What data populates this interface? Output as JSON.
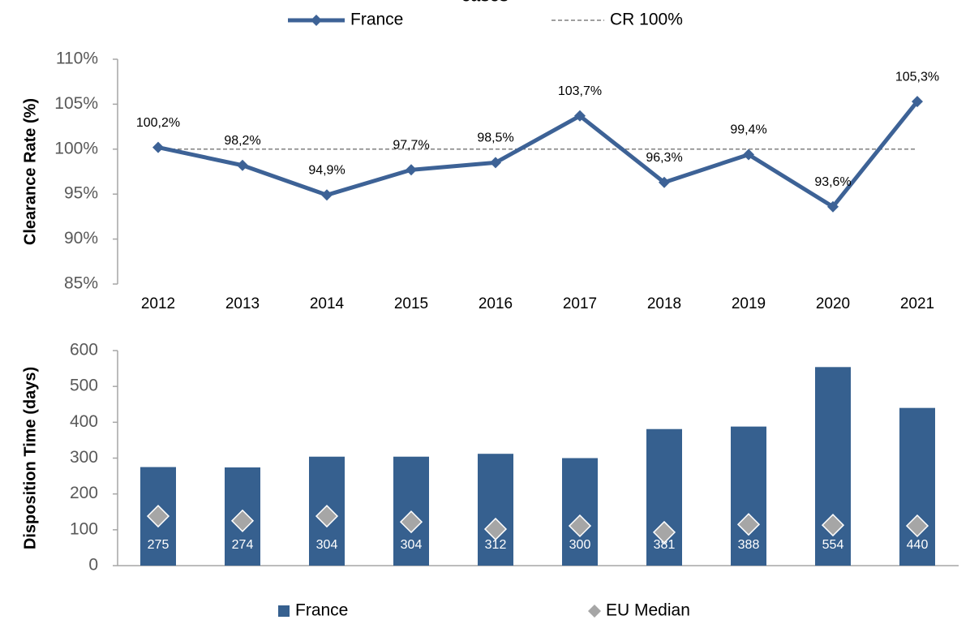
{
  "chart_data": [
    {
      "type": "line",
      "title": "cases",
      "ylabel": "Clearance Rate (%)",
      "categories": [
        "2012",
        "2013",
        "2014",
        "2015",
        "2016",
        "2017",
        "2018",
        "2019",
        "2020",
        "2021"
      ],
      "series": [
        {
          "name": "France",
          "color": "#3d6296",
          "marker": "diamond",
          "values": [
            100.2,
            98.2,
            94.9,
            97.7,
            98.5,
            103.7,
            96.3,
            99.4,
            93.6,
            105.3
          ],
          "value_labels": [
            "100,2%",
            "98,2%",
            "94,9%",
            "97,7%",
            "98,5%",
            "103,7%",
            "96,3%",
            "99,4%",
            "93,6%",
            "105,3%"
          ]
        },
        {
          "name": "CR 100%",
          "color": "#808080",
          "dashed": true,
          "values": [
            100,
            100,
            100,
            100,
            100,
            100,
            100,
            100,
            100,
            100
          ]
        }
      ],
      "ylim": [
        85,
        110
      ],
      "yticks": [
        {
          "value": 85,
          "label": "85%"
        },
        {
          "value": 90,
          "label": "90%"
        },
        {
          "value": 95,
          "label": "95%"
        },
        {
          "value": 100,
          "label": "100%"
        },
        {
          "value": 105,
          "label": "105%"
        },
        {
          "value": 110,
          "label": "110%"
        }
      ],
      "legend": "top"
    },
    {
      "type": "bar",
      "ylabel": "Disposition Time (days)",
      "categories": [
        "2012",
        "2013",
        "2014",
        "2015",
        "2016",
        "2017",
        "2018",
        "2019",
        "2020",
        "2021"
      ],
      "series": [
        {
          "name": "France",
          "type": "bar",
          "color": "#36608f",
          "values": [
            275,
            274,
            304,
            304,
            312,
            300,
            381,
            388,
            554,
            440
          ]
        },
        {
          "name": "EU Median",
          "type": "scatter",
          "marker": "diamond",
          "color": "#a6a6a6",
          "values": [
            138,
            125,
            138,
            122,
            102,
            111,
            93,
            115,
            113,
            111
          ]
        }
      ],
      "ylim": [
        0,
        600
      ],
      "yticks": [
        0,
        100,
        200,
        300,
        400,
        500,
        600
      ],
      "legend": "bottom"
    }
  ]
}
